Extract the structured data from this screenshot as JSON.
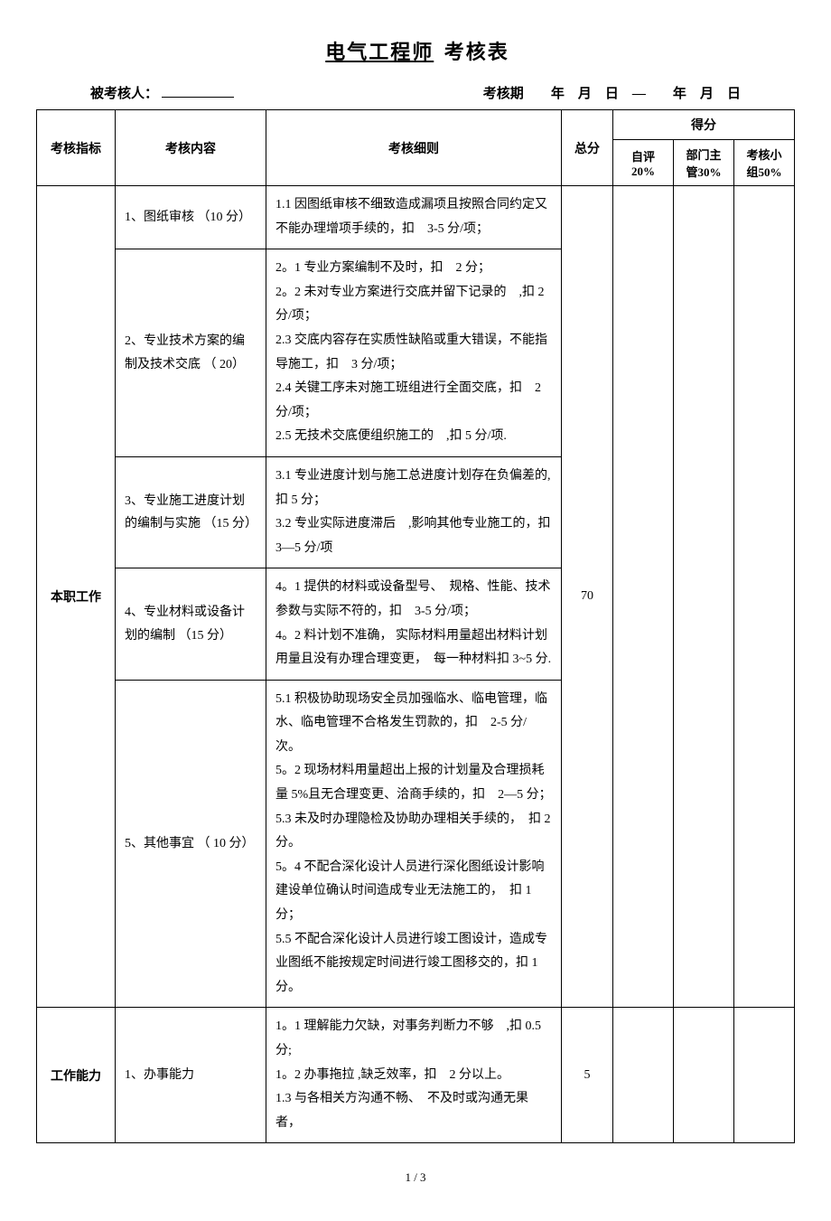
{
  "title_prefix": "电气工程师",
  "title_suffix": "考核表",
  "header": {
    "assessee_label": "被考核人：",
    "period_label": "考核期",
    "year": "年",
    "month": "月",
    "day": "日",
    "dash": "—"
  },
  "thead": {
    "indicator": "考核指标",
    "content": "考核内容",
    "detail": "考核细则",
    "total": "总分",
    "score": "得分",
    "self": "自评20%",
    "dept": "部门主管30%",
    "group": "考核小组50%"
  },
  "section1": {
    "indicator": "本职工作",
    "total": "70",
    "rows": [
      {
        "content": "1、图纸审核 （10 分）",
        "detail": "1.1 因图纸审核不细致造成漏项且按照合同约定又不能办理增项手续的，扣　3-5 分/项；"
      },
      {
        "content": "2、专业技术方案的编制及技术交底 （ 20）",
        "detail": "2。1 专业方案编制不及时，扣　2 分；\n2。2 未对专业方案进行交底并留下记录的　,扣 2 分/项；\n2.3 交底内容存在实质性缺陷或重大错误，不能指导施工，扣　3 分/项；\n2.4 关键工序未对施工班组进行全面交底，扣　2 分/项；\n2.5 无技术交底便组织施工的　,扣 5 分/项."
      },
      {
        "content": "3、专业施工进度计划的编制与实施 （15 分）",
        "detail": "3.1 专业进度计划与施工总进度计划存在负偏差的,扣 5 分；\n3.2 专业实际进度滞后　,影响其他专业施工的，扣3—5 分/项"
      },
      {
        "content": "4、专业材料或设备计划的编制 （15 分）",
        "detail": "4。1 提供的材料或设备型号、　规格、性能、技术参数与实际不符的，扣　3-5 分/项；\n4。2 料计划不准确， 实际材料用量超出材料计划用量且没有办理合理变更，　每一种材料扣 3~5 分."
      },
      {
        "content": "5、其他事宜 （ 10 分）",
        "detail": "5.1 积极协助现场安全员加强临水、临电管理，临水、临电管理不合格发生罚款的，扣　2-5 分/次。\n5。2 现场材料用量超出上报的计划量及合理损耗量 5%且无合理变更、洽商手续的，扣　2—5 分；\n5.3 未及时办理隐检及协助办理相关手续的，　扣 2 分。\n5。4 不配合深化设计人员进行深化图纸设计影响建设单位确认时间造成专业无法施工的，　扣 1 分；\n5.5 不配合深化设计人员进行竣工图设计，造成专业图纸不能按规定时间进行竣工图移交的，扣 1 分。"
      }
    ]
  },
  "section2": {
    "indicator": "工作能力",
    "total": "5",
    "rows": [
      {
        "content": "1、办事能力",
        "detail": "1。1 理解能力欠缺，对事务判断力不够　,扣 0.5 分;\n1。2 办事拖拉 ,缺乏效率，扣　2 分以上。\n1.3 与各相关方沟通不畅、　不及时或沟通无果者，"
      }
    ]
  },
  "pagenum": "1 / 3"
}
